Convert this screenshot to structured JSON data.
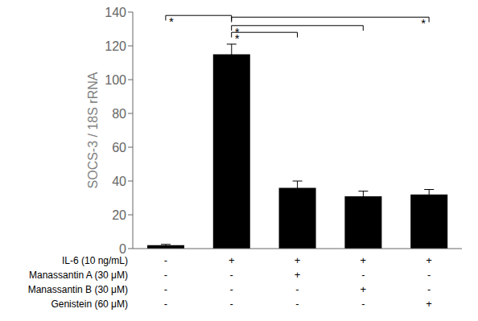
{
  "chart_data": {
    "type": "bar",
    "categories": [
      null,
      null,
      null,
      null,
      null
    ],
    "values": [
      2,
      115,
      36,
      31,
      32
    ],
    "errors": [
      0.5,
      6,
      4,
      3,
      3
    ],
    "color": "#000000",
    "ylabel": "SOCS-3 / 18S rRNA",
    "ylim": [
      0,
      140
    ],
    "yticks": [
      0,
      20,
      40,
      60,
      80,
      100,
      120,
      140
    ],
    "grid": false,
    "significance_brackets": [
      {
        "x1": 0,
        "x2": 1,
        "y": 138,
        "label": "*",
        "label_side": "left"
      },
      {
        "x1": 1,
        "x2": 2,
        "y": 128,
        "label": "*",
        "label_side": "left"
      },
      {
        "x1": 1,
        "x2": 3,
        "y": 132,
        "label": "*",
        "label_side": "left"
      },
      {
        "x1": 1,
        "x2": 4,
        "y": 137,
        "label": "*",
        "label_side": "right"
      }
    ],
    "row_labels": [
      "IL-6 (10 ng/mL)",
      "Manassantin A (30 μM)",
      "Manassantin B (30 μM)",
      "Genistein  (60 μM)"
    ],
    "row_signs": [
      [
        "-",
        "+",
        "+",
        "+",
        "+"
      ],
      [
        "-",
        "-",
        "+",
        "-",
        "-"
      ],
      [
        "-",
        "-",
        "-",
        "+",
        "-"
      ],
      [
        "-",
        "-",
        "-",
        "-",
        "+"
      ]
    ]
  }
}
